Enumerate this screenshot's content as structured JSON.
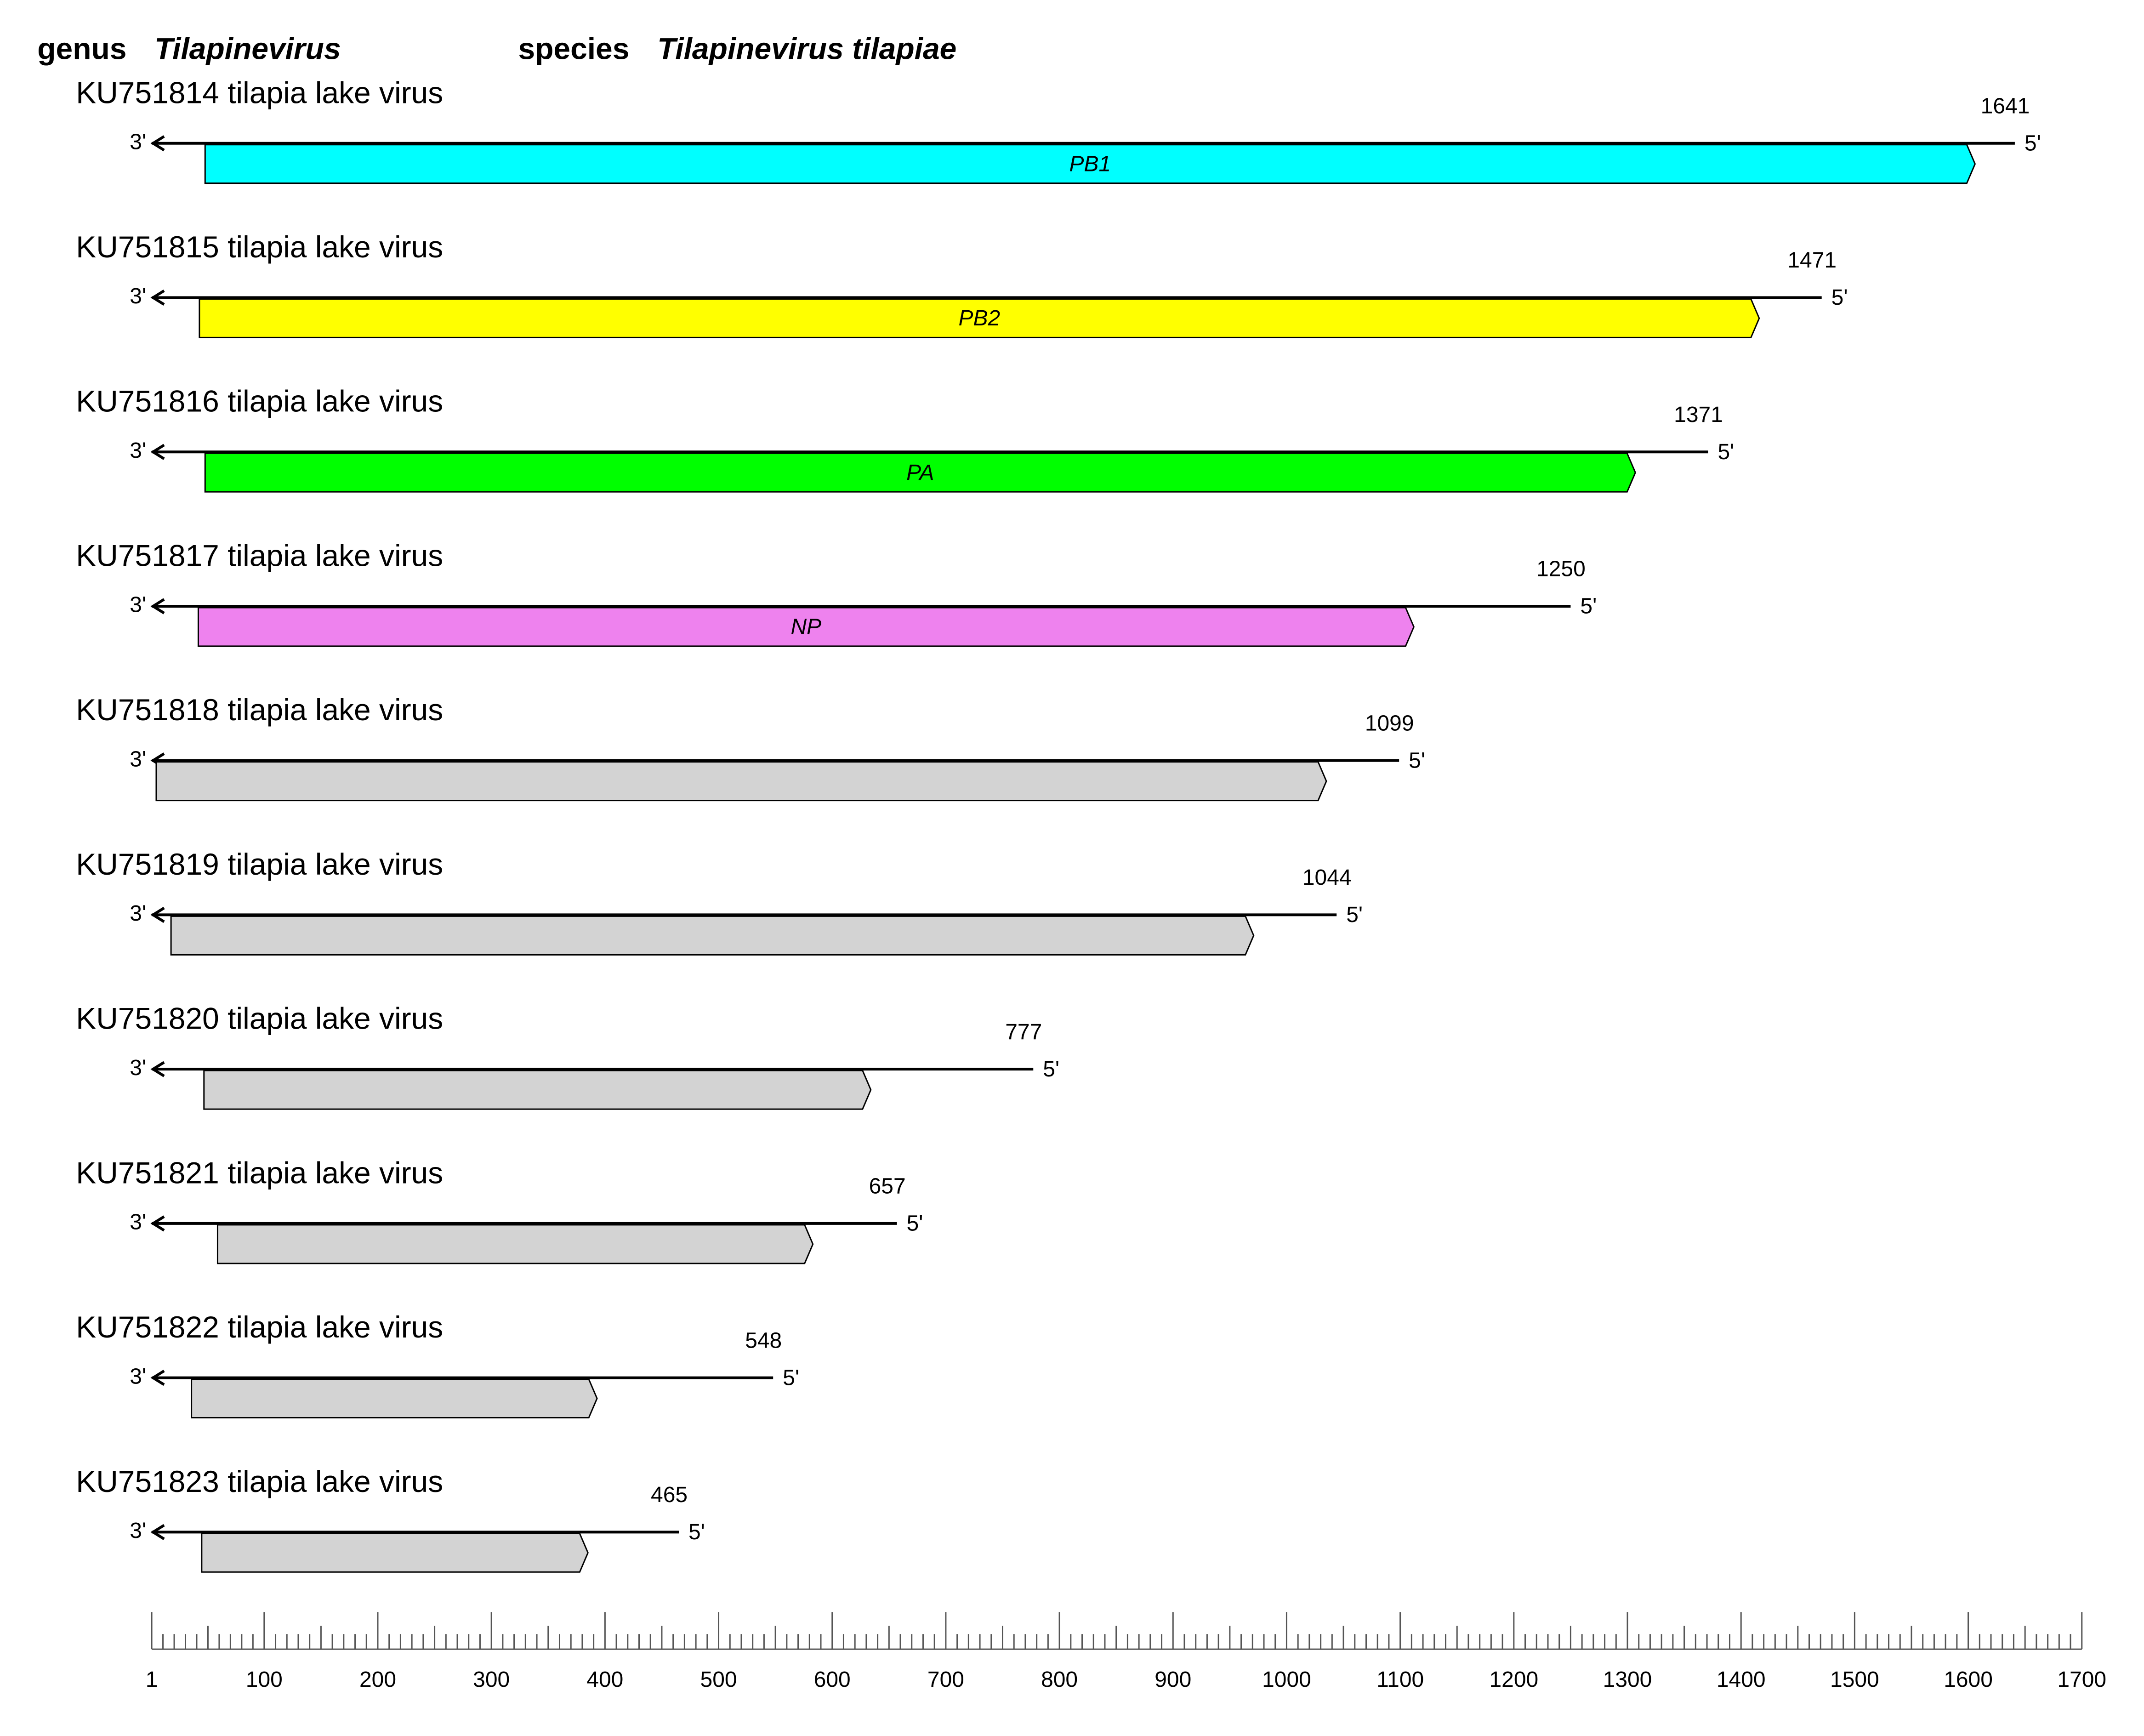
{
  "header": {
    "genus_word": "genus",
    "genus": "Tilapinevirus",
    "species_word": "species",
    "species": "Tilapinevirus tilapiae"
  },
  "three_prime": "3'",
  "five_prime": "5'",
  "segments": [
    {
      "label": "KU751814 tilapia lake virus",
      "length": 1641,
      "cds_start": 48,
      "cds_end": 1606,
      "gene": "PB1",
      "color": "#00ffff"
    },
    {
      "label": "KU751815 tilapia lake virus",
      "length": 1471,
      "cds_start": 43,
      "cds_end": 1416,
      "gene": "PB2",
      "color": "#ffff00"
    },
    {
      "label": "KU751816 tilapia lake virus",
      "length": 1371,
      "cds_start": 48,
      "cds_end": 1307,
      "gene": "PA",
      "color": "#00ff00"
    },
    {
      "label": "KU751817 tilapia lake virus",
      "length": 1250,
      "cds_start": 42,
      "cds_end": 1112,
      "gene": "NP",
      "color": "#ee82ee"
    },
    {
      "label": "KU751818 tilapia lake virus",
      "length": 1099,
      "cds_start": 5,
      "cds_end": 1035,
      "color": "#d3d3d3"
    },
    {
      "label": "KU751819 tilapia lake virus",
      "length": 1044,
      "cds_start": 18,
      "cds_end": 971,
      "color": "#d3d3d3"
    },
    {
      "label": "KU751820 tilapia lake virus",
      "length": 777,
      "cds_start": 47,
      "cds_end": 634,
      "color": "#d3d3d3"
    },
    {
      "label": "KU751821 tilapia lake virus",
      "length": 657,
      "cds_start": 59,
      "cds_end": 583,
      "color": "#d3d3d3"
    },
    {
      "label": "KU751822 tilapia lake virus",
      "length": 548,
      "cds_start": 36,
      "cds_end": 393,
      "color": "#d3d3d3"
    },
    {
      "label": "KU751823 tilapia lake virus",
      "length": 465,
      "cds_start": 45,
      "cds_end": 385,
      "color": "#d3d3d3"
    }
  ],
  "axis": {
    "lim": [
      1,
      1700
    ],
    "ticks": [
      1,
      100,
      200,
      300,
      400,
      500,
      600,
      700,
      800,
      900,
      1000,
      1100,
      1200,
      1300,
      1400,
      1500,
      1600,
      1700
    ]
  }
}
